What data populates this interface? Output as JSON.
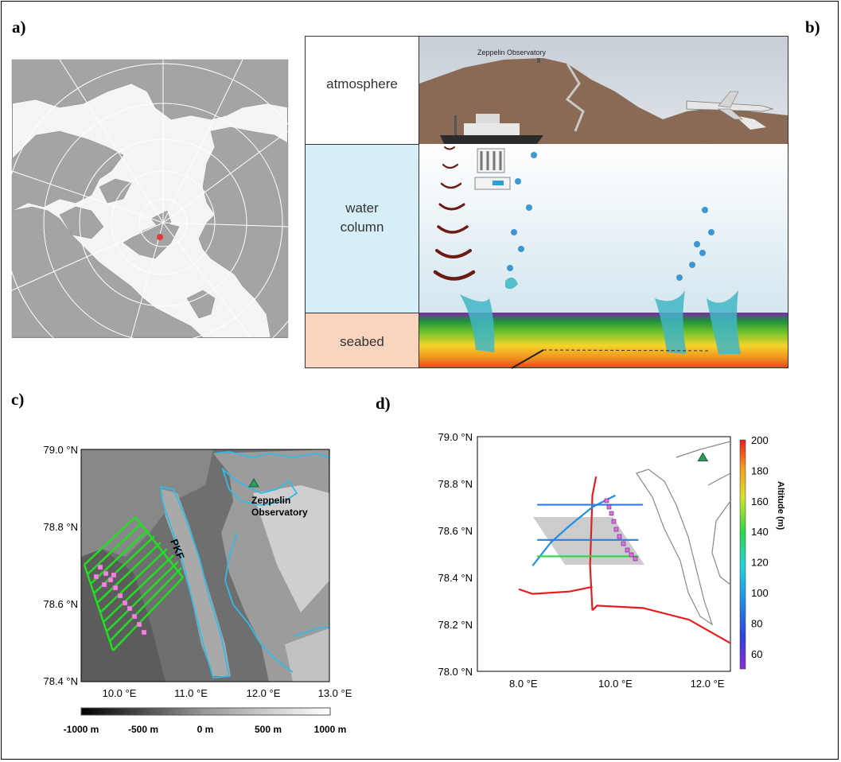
{
  "panel_labels": {
    "a": "a)",
    "b": "b)",
    "c": "c)",
    "d": "d)"
  },
  "panel_b": {
    "layers": [
      {
        "label": "atmosphere",
        "color": "#ffffff"
      },
      {
        "label": "water column",
        "color": "#d6eef8"
      },
      {
        "label": "seabed",
        "color": "#f9d4bf"
      }
    ],
    "water_lines": [
      "water",
      "column"
    ],
    "observatory_label": "Zeppelin Observatory"
  },
  "panel_c": {
    "y_ticks": [
      "79.0 °N",
      "78.8 °N",
      "78.6 °N",
      "78.4 °N"
    ],
    "x_ticks": [
      "10.0 °E",
      "11.0 °E",
      "12.0 °E",
      "13.0 °E"
    ],
    "fault_label": "PKF",
    "station_lines": [
      "Zeppelin",
      "Observatory"
    ],
    "colorbar_ticks": [
      "-1000 m",
      "-500 m",
      "0 m",
      "500 m",
      "1000 m"
    ],
    "colors": {
      "contour": "#33bbe6",
      "tracks": "#22dd22",
      "samples": "#ee88dd",
      "station": "#2a9d5c"
    }
  },
  "chart_data": {
    "type": "scatter",
    "title": "",
    "xlabel": "",
    "ylabel": "",
    "xlim": [
      7.0,
      12.5
    ],
    "ylim": [
      78.0,
      79.0
    ],
    "x_ticks": [
      "8.0 °E",
      "10.0 °E",
      "12.0 °E"
    ],
    "y_ticks": [
      "79.0 °N",
      "78.8 °N",
      "78.6 °N",
      "78.4 °N",
      "78.2 °N",
      "78.0 °N"
    ],
    "colorbar": {
      "label": "Altitude (m)",
      "ticks": [
        "200",
        "180",
        "160",
        "140",
        "120",
        "100",
        "80",
        "60"
      ],
      "range": [
        50,
        200
      ]
    },
    "station": {
      "x": 11.9,
      "y": 78.91
    },
    "series": [
      {
        "values": [
          [
            9.5,
            78.26
          ],
          [
            9.6,
            78.28
          ],
          [
            10.6,
            78.27
          ],
          [
            11.6,
            78.22
          ],
          [
            12.5,
            78.12
          ]
        ]
      },
      {
        "values": [
          [
            9.5,
            78.26
          ],
          [
            9.45,
            78.45
          ],
          [
            9.5,
            78.75
          ],
          [
            9.58,
            78.83
          ]
        ]
      },
      {
        "values": [
          [
            7.9,
            78.35
          ],
          [
            8.2,
            78.33
          ],
          [
            9.0,
            78.34
          ],
          [
            9.5,
            78.36
          ]
        ]
      },
      {
        "values": [
          [
            8.2,
            78.45
          ],
          [
            8.6,
            78.55
          ],
          [
            9.0,
            78.62
          ],
          [
            9.5,
            78.7
          ],
          [
            10.0,
            78.75
          ]
        ]
      },
      {
        "values": [
          [
            8.3,
            78.71
          ],
          [
            10.6,
            78.71
          ]
        ]
      },
      {
        "values": [
          [
            8.3,
            78.56
          ],
          [
            10.5,
            78.56
          ]
        ]
      },
      {
        "values": [
          [
            8.3,
            78.49
          ],
          [
            10.5,
            78.49
          ]
        ]
      }
    ]
  }
}
